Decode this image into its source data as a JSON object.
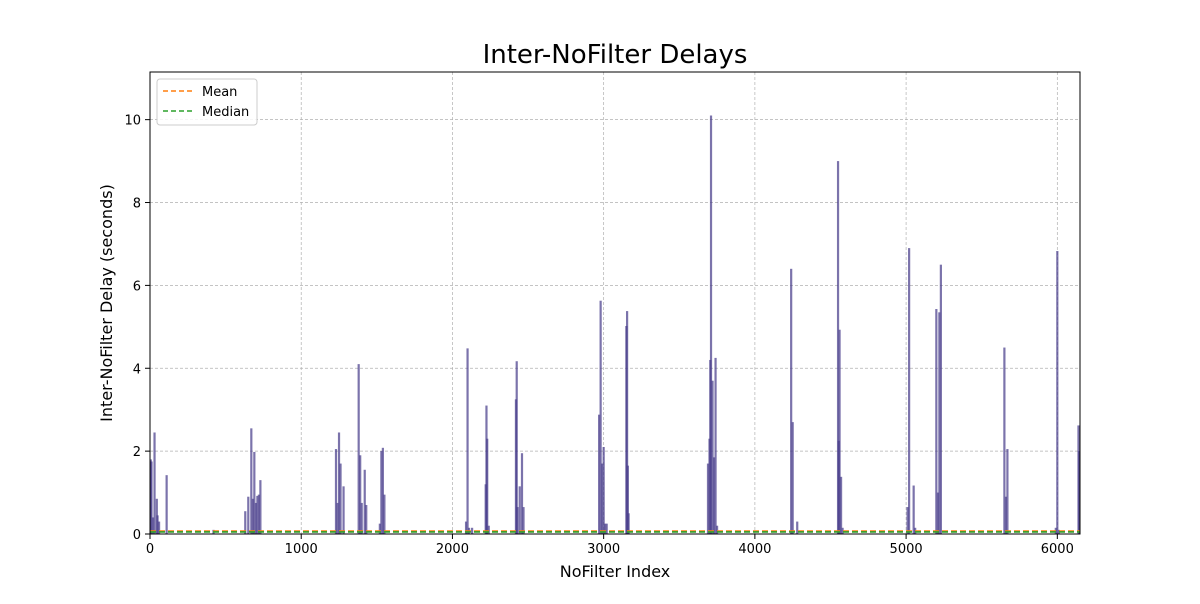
{
  "chart_data": {
    "type": "bar",
    "title": "Inter-NoFilter Delays",
    "xlabel": "NoFilter Index",
    "ylabel": "Inter-NoFilter Delay (seconds)",
    "xlim": [
      0,
      6150
    ],
    "ylim": [
      0,
      11.15
    ],
    "xticks": [
      0,
      1000,
      2000,
      3000,
      4000,
      5000,
      6000
    ],
    "yticks": [
      0,
      2,
      4,
      6,
      8,
      10
    ],
    "grid": true,
    "legend_position": "top-left",
    "bar_color": "#483d8b",
    "bar_opacity": 0.72,
    "series": [
      {
        "type": "bar",
        "x": [
          5,
          10,
          20,
          30,
          45,
          50,
          60,
          110,
          420,
          630,
          650,
          670,
          680,
          690,
          700,
          710,
          720,
          730,
          1230,
          1240,
          1250,
          1260,
          1280,
          1380,
          1390,
          1400,
          1420,
          1430,
          1520,
          1530,
          1540,
          1550,
          2090,
          2100,
          2110,
          2130,
          2220,
          2225,
          2230,
          2240,
          2420,
          2425,
          2430,
          2445,
          2460,
          2470,
          2970,
          2980,
          2990,
          3000,
          3010,
          3020,
          3150,
          3155,
          3160,
          3165,
          3690,
          3700,
          3705,
          3710,
          3720,
          3730,
          3740,
          3750,
          4240,
          4250,
          4280,
          4550,
          4555,
          4560,
          4570,
          4580,
          5010,
          5020,
          5050,
          5060,
          5200,
          5210,
          5220,
          5230,
          5650,
          5660,
          5670,
          5990,
          6000,
          6010,
          6140,
          6145
        ],
        "values": [
          1.8,
          1.75,
          0.4,
          2.45,
          0.85,
          0.45,
          0.3,
          1.42,
          0.1,
          0.55,
          0.9,
          2.55,
          0.85,
          1.98,
          0.75,
          0.92,
          0.95,
          1.3,
          2.05,
          0.75,
          2.45,
          1.7,
          1.15,
          4.1,
          1.9,
          0.75,
          1.55,
          0.7,
          0.25,
          2.0,
          2.08,
          0.95,
          0.3,
          4.48,
          0.15,
          0.15,
          1.2,
          3.1,
          2.3,
          0.2,
          3.25,
          4.17,
          0.65,
          1.15,
          1.95,
          0.65,
          2.88,
          5.63,
          1.7,
          2.1,
          0.25,
          0.25,
          5.02,
          5.38,
          1.65,
          0.5,
          1.7,
          2.3,
          4.2,
          10.1,
          3.7,
          1.85,
          4.25,
          0.2,
          6.4,
          2.7,
          0.3,
          9.0,
          2.25,
          4.93,
          1.38,
          0.15,
          0.65,
          6.9,
          1.17,
          0.15,
          5.43,
          1.0,
          5.35,
          6.5,
          4.5,
          0.9,
          2.05,
          0.15,
          6.83,
          0.1,
          2.62,
          2.0
        ]
      }
    ],
    "legend": [
      {
        "label": "Mean",
        "value": 0.07,
        "color": "#ff7f0e"
      },
      {
        "label": "Median",
        "value": 0.05,
        "color": "#2ca02c"
      }
    ]
  }
}
